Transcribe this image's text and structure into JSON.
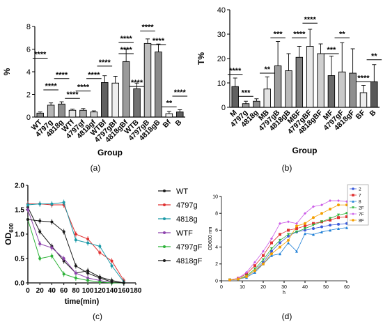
{
  "figure": {
    "panel_labels": [
      "(a)",
      "(b)",
      "(c)",
      "(d)"
    ]
  },
  "chart_data": [
    {
      "panel": "(a)",
      "type": "bar",
      "ylabel": "%",
      "xlabel": "Group",
      "ylim": [
        0,
        8
      ],
      "yticks": [
        0,
        2,
        4,
        6,
        8
      ],
      "categories": [
        "WT",
        "4797g",
        "4818g",
        "WTf",
        "4797gf",
        "4818gf",
        "WTBf",
        "4797gBf",
        "4818gBf",
        "WTB",
        "4797gB",
        "4818gB",
        "Bf",
        "B"
      ],
      "values": [
        0.35,
        1.05,
        1.15,
        0.6,
        0.6,
        0.45,
        3.05,
        3.0,
        4.9,
        2.5,
        6.5,
        5.75,
        0.3,
        0.45
      ],
      "errors": [
        0.1,
        0.2,
        0.2,
        0.1,
        0.15,
        0.1,
        0.6,
        0.6,
        1.1,
        0.5,
        0.4,
        0.7,
        0.2,
        0.2
      ],
      "fills": [
        "#8c8c8c",
        "#b5b5b5",
        "#8c8c8c",
        "#e4e4e4",
        "#a9a9a9",
        "#cfcfcf",
        "#606060",
        "#eeeeee",
        "#9a9a9a",
        "#727272",
        "#bcbcbc",
        "#8a8a8a",
        "#f2f2f2",
        "#5f5f5f"
      ],
      "significance": [
        {
          "label": "****",
          "from": 0,
          "to": 0,
          "y": 5.2
        },
        {
          "label": "****",
          "from": 1,
          "to": 1,
          "y": 2.4
        },
        {
          "label": "****",
          "from": 2,
          "to": 2,
          "y": 3.4
        },
        {
          "label": "****",
          "from": 3,
          "to": 3,
          "y": 1.65
        },
        {
          "label": "****",
          "from": 4,
          "to": 4,
          "y": 2.3
        },
        {
          "label": "****",
          "from": 5,
          "to": 5,
          "y": 3.4
        },
        {
          "label": "****",
          "from": 6,
          "to": 6,
          "y": 4.5
        },
        {
          "label": "****",
          "from": 8,
          "to": 8,
          "y": 5.6
        },
        {
          "label": "****",
          "from": 8,
          "to": 8,
          "y": 6.6
        },
        {
          "label": "****",
          "from": 9,
          "to": 9,
          "y": 2.7
        },
        {
          "label": "****",
          "from": 10,
          "to": 10,
          "y": 7.6
        },
        {
          "label": "****",
          "from": 11,
          "to": 11,
          "y": 6.4
        },
        {
          "label": "**",
          "from": 12,
          "to": 12,
          "y": 0.9
        },
        {
          "label": "****",
          "from": 13,
          "to": 13,
          "y": 1.85
        }
      ]
    },
    {
      "panel": "(b)",
      "type": "bar",
      "ylabel": "T%",
      "xlabel": "Group",
      "ylim": [
        0,
        40
      ],
      "yticks": [
        0,
        10,
        20,
        30,
        40
      ],
      "categories": [
        "M",
        "4797g",
        "4818g",
        "MB",
        "4797gB",
        "4818gB",
        "MBF",
        "4797gBF",
        "4818gBF",
        "MF",
        "4797gF",
        "4818gF",
        "BF",
        "B"
      ],
      "values": [
        8.5,
        1.5,
        2.5,
        7.5,
        17.0,
        15.0,
        20.5,
        25.0,
        22.0,
        13.0,
        14.5,
        14.0,
        6.0,
        10.5
      ],
      "errors": [
        3.5,
        1.0,
        1.0,
        5.0,
        10.0,
        7.0,
        4.5,
        7.0,
        4.0,
        8.0,
        12.0,
        10.0,
        3.0,
        7.0
      ],
      "fills": [
        "#606060",
        "#9a9a9a",
        "#8c8c8c",
        "#e2e2e2",
        "#9c9c9c",
        "#b9b9b9",
        "#7e7e7e",
        "#e8e8e8",
        "#cfcfcf",
        "#6a6a6a",
        "#c9c9c9",
        "#8e8e8e",
        "#ededed",
        "#595959"
      ],
      "significance": [
        {
          "label": "****",
          "from": 0,
          "to": 0,
          "y": 13.5
        },
        {
          "label": "***",
          "from": 1,
          "to": 1,
          "y": 4.5
        },
        {
          "label": "**",
          "from": 3,
          "to": 3,
          "y": 14.0
        },
        {
          "label": "***",
          "from": 4,
          "to": 4,
          "y": 28.5
        },
        {
          "label": "****",
          "from": 6,
          "to": 6,
          "y": 28.5
        },
        {
          "label": "****",
          "from": 7,
          "to": 7,
          "y": 34.5
        },
        {
          "label": "***",
          "from": 9,
          "to": 9,
          "y": 22.0
        },
        {
          "label": "**",
          "from": 10,
          "to": 10,
          "y": 28.5
        },
        {
          "label": "****",
          "from": 12,
          "to": 12,
          "y": 10.5
        },
        {
          "label": "**",
          "from": 13,
          "to": 13,
          "y": 19.5
        }
      ]
    },
    {
      "panel": "(c)",
      "type": "line",
      "ylabel": "OD600",
      "xlabel": "time(min)",
      "xlim": [
        0,
        180
      ],
      "ylim": [
        0.0,
        2.0
      ],
      "xticks": [
        0,
        20,
        40,
        60,
        80,
        100,
        120,
        140,
        160,
        180
      ],
      "yticks": [
        "0.0",
        "0.5",
        "1.0",
        "1.5",
        "2.0"
      ],
      "x": [
        0,
        20,
        40,
        60,
        80,
        100,
        120,
        140,
        160
      ],
      "series": [
        {
          "name": "WT",
          "color": "#1a1a1a",
          "values": [
            1.55,
            1.05,
            0.75,
            0.45,
            0.2,
            0.25,
            0.12,
            0.05,
            0.0
          ]
        },
        {
          "name": "4797g",
          "color": "#e03131",
          "values": [
            1.62,
            1.62,
            1.6,
            1.6,
            1.0,
            0.9,
            0.62,
            0.45,
            0.05
          ]
        },
        {
          "name": "4818g",
          "color": "#1c9aa8",
          "values": [
            1.6,
            1.62,
            1.62,
            1.65,
            0.88,
            0.82,
            0.75,
            0.35,
            0.02
          ]
        },
        {
          "name": "WTF",
          "color": "#8e44ad",
          "values": [
            1.5,
            0.8,
            0.72,
            0.5,
            0.2,
            0.1,
            0.05,
            0.0,
            0.0
          ]
        },
        {
          "name": "4797gF",
          "color": "#2fb33a",
          "values": [
            1.3,
            0.5,
            0.55,
            0.18,
            0.1,
            0.05,
            0.02,
            0.0,
            0.0
          ]
        },
        {
          "name": "4818gF",
          "color": "#1a1a1a",
          "values": [
            1.3,
            1.27,
            1.25,
            1.05,
            0.35,
            0.2,
            0.1,
            0.02,
            0.0
          ]
        }
      ]
    },
    {
      "panel": "(d)",
      "type": "line",
      "ylabel": "OD600 nm",
      "xlabel": "h",
      "xlim": [
        0,
        60
      ],
      "ylim": [
        0,
        10
      ],
      "xticks": [
        0,
        10,
        20,
        30,
        40,
        50,
        60
      ],
      "yticks": [
        0,
        2,
        4,
        6,
        8,
        10
      ],
      "x": [
        4,
        8,
        12,
        16,
        20,
        24,
        28,
        32,
        36,
        40,
        44,
        48,
        52,
        56,
        60
      ],
      "series": [
        {
          "name": "2",
          "color": "#3b5bdb",
          "values": [
            0.1,
            0.2,
            0.5,
            1.2,
            2.2,
            3.5,
            4.5,
            5.3,
            5.8,
            6.0,
            6.2,
            6.4,
            6.6,
            6.7,
            6.8
          ]
        },
        {
          "name": "7",
          "color": "#e03131",
          "values": [
            0.1,
            0.3,
            0.8,
            1.8,
            3.0,
            4.5,
            5.5,
            6.0,
            6.2,
            6.5,
            6.8,
            7.0,
            7.2,
            7.5,
            7.6
          ]
        },
        {
          "name": "8",
          "color": "#1c7ed6",
          "values": [
            0.1,
            0.2,
            0.4,
            1.0,
            2.0,
            3.0,
            3.2,
            4.5,
            3.5,
            5.6,
            5.5,
            5.8,
            6.0,
            6.2,
            6.3
          ]
        },
        {
          "name": "2F",
          "color": "#2fb33a",
          "values": [
            0.1,
            0.2,
            0.6,
            1.4,
            2.5,
            3.8,
            4.8,
            5.5,
            5.8,
            6.2,
            6.6,
            7.0,
            7.4,
            7.8,
            8.0
          ]
        },
        {
          "name": "7F",
          "color": "#cc5de8",
          "values": [
            0.1,
            0.3,
            1.0,
            2.2,
            3.5,
            5.0,
            6.8,
            7.0,
            6.8,
            8.0,
            8.8,
            9.0,
            9.5,
            9.5,
            9.4
          ]
        },
        {
          "name": "8F",
          "color": "#f59f00",
          "values": [
            0.1,
            0.2,
            0.5,
            1.2,
            2.0,
            3.2,
            4.0,
            4.8,
            6.5,
            6.8,
            7.5,
            8.0,
            8.5,
            9.0,
            9.0
          ]
        }
      ]
    }
  ]
}
